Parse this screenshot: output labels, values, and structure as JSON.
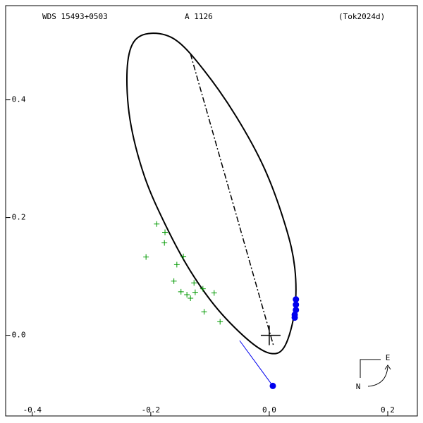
{
  "chart_data": {
    "type": "orbit",
    "title": "WDS 15493+0503",
    "subtitle": "A  1126",
    "reference": "(Tok2024d)",
    "compass": {
      "north": "N",
      "east": "E"
    },
    "xlim": [
      -0.445,
      0.25
    ],
    "ylim": [
      0.137,
      -0.56
    ],
    "xticks": [
      -0.4,
      -0.2,
      {
        "value": 0,
        "label": "0.0"
      },
      0.2
    ],
    "yticks": [
      {
        "value": 0,
        "label": "-0.0"
      },
      -0.2,
      -0.4
    ],
    "orbit": {
      "color": "#000000",
      "x": [
        -0.199,
        -0.229,
        -0.24,
        -0.235,
        -0.211,
        -0.175,
        -0.133,
        -0.086,
        -0.032,
        0.004,
        0.027,
        0.043,
        0.043,
        0.027,
        -0.008,
        -0.056,
        -0.11,
        -0.157
      ],
      "y": [
        -0.513,
        -0.498,
        -0.45,
        -0.366,
        -0.271,
        -0.187,
        -0.109,
        -0.043,
        0.011,
        0.031,
        0.017,
        -0.043,
        -0.115,
        -0.187,
        -0.283,
        -0.372,
        -0.45,
        -0.501
      ]
    },
    "line_of_nodes": {
      "color": "#000000",
      "x": [
        -0.133,
        0.007
      ],
      "y": [
        -0.478,
        0.017
      ]
    },
    "measures": {
      "color": "#009900",
      "x": [
        -0.19,
        -0.176,
        -0.177,
        -0.208,
        -0.145,
        -0.156,
        -0.161,
        -0.127,
        -0.149,
        -0.139,
        -0.133,
        -0.112,
        -0.093,
        -0.125,
        -0.11,
        -0.083
      ],
      "y": [
        -0.189,
        -0.175,
        -0.157,
        -0.133,
        -0.134,
        -0.12,
        -0.092,
        -0.089,
        -0.074,
        -0.069,
        -0.063,
        -0.079,
        -0.072,
        -0.073,
        -0.04,
        -0.023
      ]
    },
    "recent": {
      "color": "#0000ee",
      "x": [
        0.045,
        0.045,
        0.045,
        0.043,
        0.043
      ],
      "y": [
        -0.061,
        -0.052,
        -0.043,
        -0.035,
        -0.03
      ]
    },
    "outlier": {
      "color": "#0000ee",
      "x": [
        0.006,
        -0.05
      ],
      "y": [
        0.086,
        0.009
      ]
    }
  }
}
